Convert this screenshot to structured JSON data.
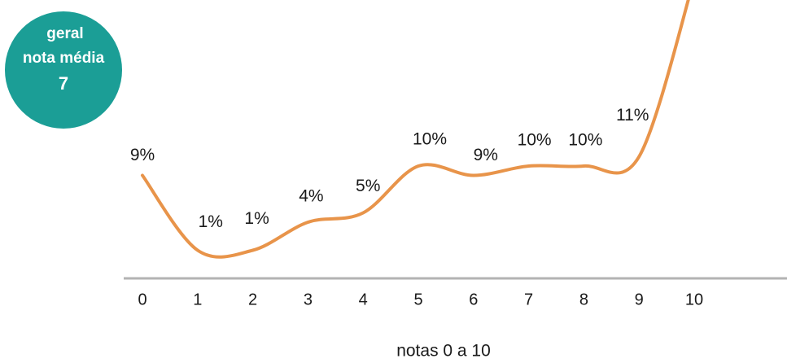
{
  "badge": {
    "lines": [
      "geral",
      "nota média",
      "7"
    ]
  },
  "chart_data": {
    "type": "line",
    "categories": [
      "0",
      "1",
      "2",
      "3",
      "4",
      "5",
      "6",
      "7",
      "8",
      "9",
      "10"
    ],
    "values": [
      9,
      1,
      1,
      4,
      5,
      10,
      9,
      10,
      10,
      11,
      30
    ],
    "value_labels": [
      "9%",
      "1%",
      "1%",
      "4%",
      "5%",
      "10%",
      "9%",
      "10%",
      "10%",
      "11%",
      null
    ],
    "color": "#e8944a",
    "ylim": [
      -2,
      27
    ],
    "x_label": "notas 0 a 10"
  }
}
